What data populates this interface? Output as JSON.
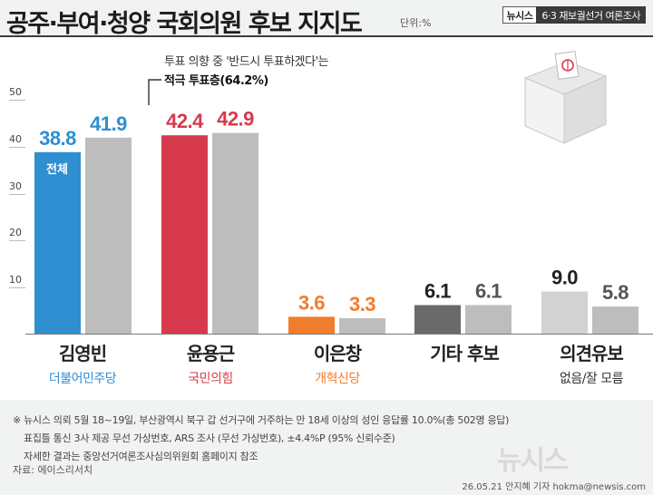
{
  "header": {
    "title": "공주·부여·청양 국회의원 후보 지지도",
    "unit": "단위:%",
    "badge_left": "뉴시스",
    "badge_right": "6·3 재보궐선거  여론조사"
  },
  "callout": {
    "line1": "투표 의향 중 '반드시 투표하겠다'는",
    "line2": "적극 투표층(64.2%)"
  },
  "inbar_label": "전체",
  "candidates": [
    {
      "name": "김영빈",
      "party": "더불어민주당",
      "party_color": "#2f8fd0"
    },
    {
      "name": "윤용근",
      "party": "국민의힘",
      "party_color": "#d63a4c"
    },
    {
      "name": "이은창",
      "party": "개혁신당",
      "party_color": "#f07c2c"
    },
    {
      "name": "기타 후보",
      "party": "",
      "party_color": "#222222"
    },
    {
      "name": "의견유보",
      "party": "없음/잘 모름",
      "party_color": "#333333"
    }
  ],
  "chart_data": {
    "type": "bar",
    "categories": [
      "김영빈",
      "윤용근",
      "이은창",
      "기타 후보",
      "의견유보"
    ],
    "series": [
      {
        "name": "전체",
        "values": [
          38.8,
          42.4,
          3.6,
          6.1,
          9.0
        ]
      },
      {
        "values": [
          41.9,
          42.9,
          3.3,
          6.1,
          5.8
        ]
      }
    ],
    "yticks": [
      "10",
      "20",
      "30",
      "40",
      "50"
    ],
    "ylim": [
      0,
      50
    ],
    "colors": {
      "first": [
        "#2f8fd0",
        "#d63a4c",
        "#f07c2c",
        "#6a6a6a",
        "#d2d2d2"
      ],
      "second": "#bdbdbd",
      "first_label": [
        "#2f8fd0",
        "#d63a4c",
        "#f07c2c",
        "#222222",
        "#222222"
      ],
      "second_label": [
        "#2f8fd0",
        "#d63a4c",
        "#f07c2c",
        "#555555",
        "#555555"
      ]
    }
  },
  "footnote": {
    "line1": "※ 뉴시스 의뢰 5월 18~19일, 부산광역시 북구 갑 선거구에 거주하는 만 18세 이상의 성인  응답률 10.0%(총 502명 응답)",
    "line2": "표집틀 통신 3사 제공 무선 가상번호, ARS 조사 (무선 가상번호), ±4.4%P (95% 신뢰수준)",
    "line3": "자세한 결과는 중앙선거여론조사심의위원회 홈페이지 참조"
  },
  "source": "자료: 에이스리서치",
  "credit": "26.05.21 안지혜 기자  hokma@newsis.com",
  "logo": "뉴시스"
}
